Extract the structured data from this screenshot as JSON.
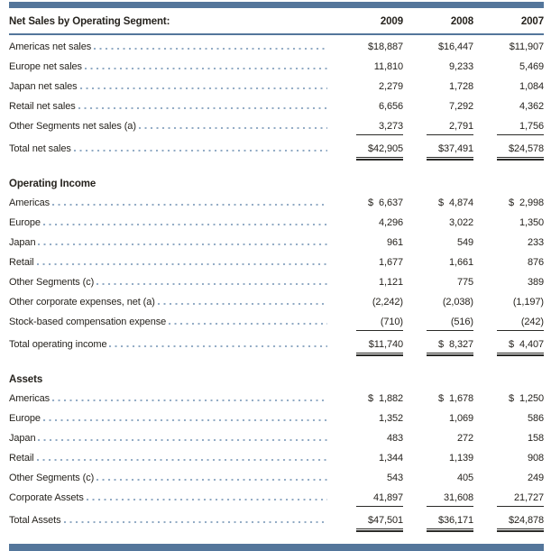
{
  "accent_color": "#54769B",
  "dot_leader_color": "#8FA9C3",
  "table": {
    "header": {
      "label": "Net Sales by Operating Segment:",
      "columns": [
        "2009",
        "2008",
        "2007"
      ]
    },
    "sections": [
      {
        "title": "",
        "rows": [
          {
            "label": "Americas net sales",
            "values": [
              "$18,887",
              "$16,447",
              "$11,907"
            ],
            "style": "plain"
          },
          {
            "label": "Europe net sales",
            "values": [
              "11,810",
              "9,233",
              "5,469"
            ],
            "style": "plain"
          },
          {
            "label": "Japan net sales",
            "values": [
              "2,279",
              "1,728",
              "1,084"
            ],
            "style": "plain"
          },
          {
            "label": "Retail net sales",
            "values": [
              "6,656",
              "7,292",
              "4,362"
            ],
            "style": "plain"
          },
          {
            "label": "Other Segments net sales (a)",
            "values": [
              "3,273",
              "2,791",
              "1,756"
            ],
            "style": "rule"
          },
          {
            "label": "Total net sales",
            "values": [
              "$42,905",
              "$37,491",
              "$24,578"
            ],
            "style": "total"
          }
        ]
      },
      {
        "title": "Operating Income",
        "rows": [
          {
            "label": "Americas",
            "values": [
              "$ 6,637",
              "$ 4,874",
              "$ 2,998"
            ],
            "style": "plain"
          },
          {
            "label": "Europe",
            "values": [
              "4,296",
              "3,022",
              "1,350"
            ],
            "style": "plain"
          },
          {
            "label": "Japan",
            "values": [
              "961",
              "549",
              "233"
            ],
            "style": "plain"
          },
          {
            "label": "Retail",
            "values": [
              "1,677",
              "1,661",
              "876"
            ],
            "style": "plain"
          },
          {
            "label": "Other Segments (c)",
            "values": [
              "1,121",
              "775",
              "389"
            ],
            "style": "plain"
          },
          {
            "label": "Other corporate expenses, net (a)",
            "values": [
              "(2,242)",
              "(2,038)",
              "(1,197)"
            ],
            "style": "plain"
          },
          {
            "label": "Stock-based compensation expense",
            "values": [
              "(710)",
              "(516)",
              "(242)"
            ],
            "style": "rule"
          },
          {
            "label": "Total operating income",
            "values": [
              "$11,740",
              "$ 8,327",
              "$ 4,407"
            ],
            "style": "total"
          }
        ]
      },
      {
        "title": "Assets",
        "rows": [
          {
            "label": "Americas",
            "values": [
              "$ 1,882",
              "$ 1,678",
              "$ 1,250"
            ],
            "style": "plain"
          },
          {
            "label": "Europe",
            "values": [
              "1,352",
              "1,069",
              "586"
            ],
            "style": "plain"
          },
          {
            "label": "Japan",
            "values": [
              "483",
              "272",
              "158"
            ],
            "style": "plain"
          },
          {
            "label": "Retail",
            "values": [
              "1,344",
              "1,139",
              "908"
            ],
            "style": "plain"
          },
          {
            "label": "Other Segments (c)",
            "values": [
              "543",
              "405",
              "249"
            ],
            "style": "plain"
          },
          {
            "label": "Corporate Assets",
            "values": [
              "41,897",
              "31,608",
              "21,727"
            ],
            "style": "rule"
          },
          {
            "label": "Total Assets",
            "values": [
              "$47,501",
              "$36,171",
              "$24,878"
            ],
            "style": "total"
          }
        ]
      }
    ]
  }
}
